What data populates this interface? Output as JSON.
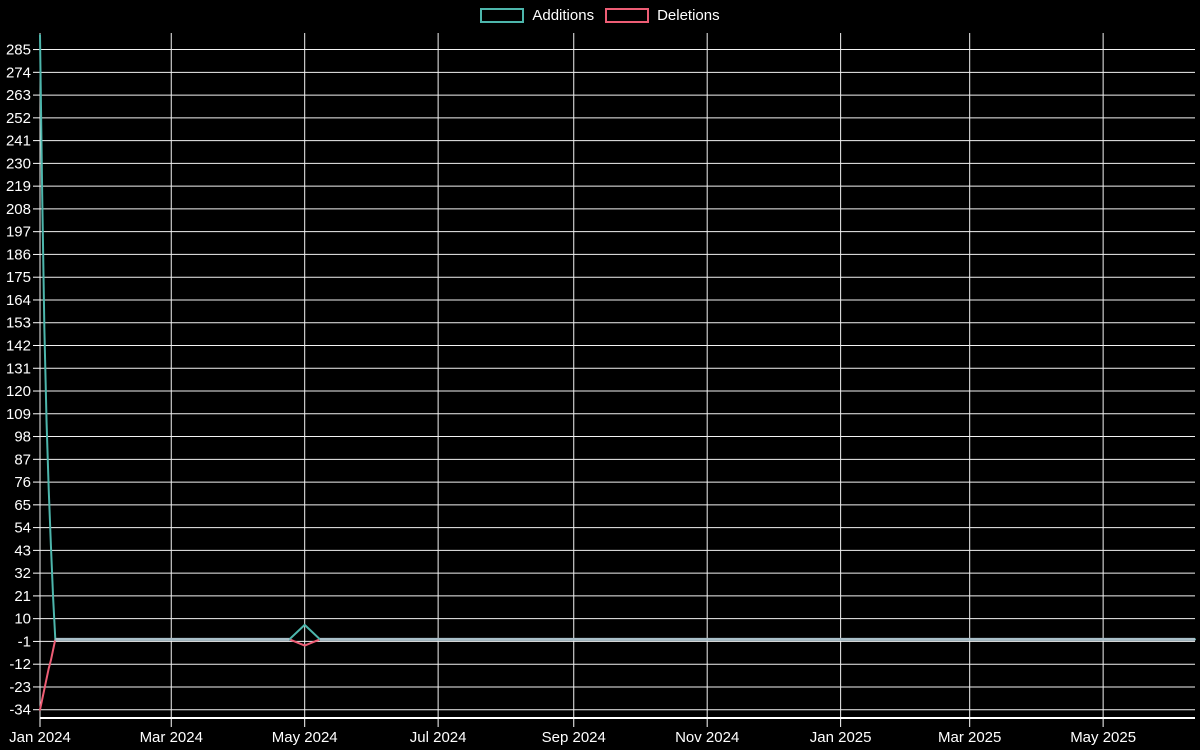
{
  "colors": {
    "background": "#000000",
    "grid": "#f2f2f2",
    "axis": "#ffffff",
    "text": "#ffffff"
  },
  "chart_data": {
    "type": "line",
    "title": "",
    "xlabel": "",
    "ylabel": "",
    "legend_position": "top-center",
    "grid": true,
    "x": [
      "2024-01-01",
      "2024-01-02",
      "2024-01-03",
      "2024-01-04",
      "2024-01-05",
      "2024-01-06",
      "2024-01-07",
      "2024-01-08",
      "2024-04-24",
      "2024-05-01",
      "2024-05-08",
      "2025-06-12"
    ],
    "series": [
      {
        "name": "Additions",
        "color": "#4db6ac",
        "values": [
          292,
          215,
          150,
          105,
          72,
          45,
          20,
          0,
          0,
          7,
          0,
          0
        ]
      },
      {
        "name": "Deletions",
        "color": "#ee5d75",
        "values": [
          -34,
          -29,
          -24,
          -19,
          -14,
          -10,
          -5,
          0,
          0,
          -3,
          0,
          0
        ]
      }
    ],
    "overlap_color": "#a9bfc9",
    "x_ticks": [
      {
        "label": "Jan 2024",
        "date": "2024-01-01"
      },
      {
        "label": "Mar 2024",
        "date": "2024-03-01"
      },
      {
        "label": "May 2024",
        "date": "2024-05-01"
      },
      {
        "label": "Jul 2024",
        "date": "2024-07-01"
      },
      {
        "label": "Sep 2024",
        "date": "2024-09-01"
      },
      {
        "label": "Nov 2024",
        "date": "2024-11-01"
      },
      {
        "label": "Jan 2025",
        "date": "2025-01-01"
      },
      {
        "label": "Mar 2025",
        "date": "2025-03-01"
      },
      {
        "label": "May 2025",
        "date": "2025-05-01"
      }
    ],
    "y_ticks": [
      285,
      274,
      263,
      252,
      241,
      230,
      219,
      208,
      197,
      186,
      175,
      164,
      153,
      142,
      131,
      120,
      109,
      98,
      87,
      76,
      65,
      54,
      43,
      32,
      21,
      10,
      -1,
      -12,
      -23,
      -34
    ],
    "y_min": -38,
    "y_max": 293
  }
}
